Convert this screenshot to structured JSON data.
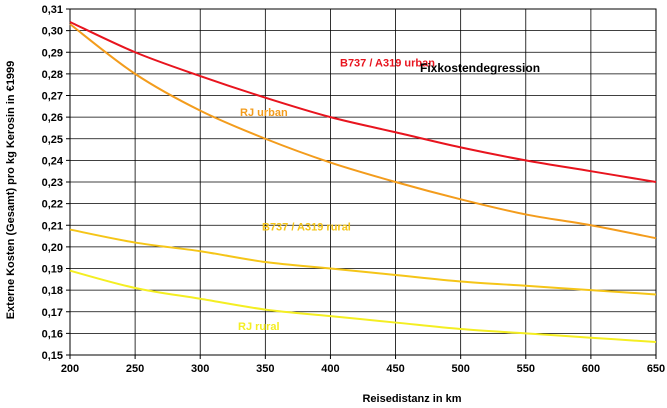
{
  "chart_data": {
    "type": "line",
    "title": "",
    "annotation": "Fixkostendegression",
    "xlabel": "Reisedistanz in km",
    "ylabel": "Externe Kosten (Gesamt) pro kg Kerosin in €1999",
    "x": [
      200,
      250,
      300,
      350,
      400,
      450,
      500,
      550,
      600,
      650
    ],
    "x_tick_labels": [
      "200",
      "250",
      "300",
      "350",
      "400",
      "450",
      "500",
      "550",
      "600",
      "650"
    ],
    "y_tick_labels": [
      "0,15",
      "0,16",
      "0,17",
      "0,18",
      "0,19",
      "0,20",
      "0,21",
      "0,22",
      "0,23",
      "0,24",
      "0,25",
      "0,26",
      "0,27",
      "0,28",
      "0,29",
      "0,30",
      "0,31"
    ],
    "xlim": [
      200,
      650
    ],
    "ylim": [
      0.15,
      0.31
    ],
    "grid": true,
    "series": [
      {
        "name": "B737 / A319 urban",
        "color": "#e8141e",
        "values": [
          0.304,
          0.29,
          0.279,
          0.269,
          0.26,
          0.253,
          0.246,
          0.24,
          0.235,
          0.23
        ]
      },
      {
        "name": "RJ urban",
        "color": "#f39c1c",
        "values": [
          0.303,
          0.28,
          0.263,
          0.25,
          0.239,
          0.23,
          0.222,
          0.215,
          0.21,
          0.204
        ]
      },
      {
        "name": "B737 / A319 rural",
        "color": "#f5c518",
        "values": [
          0.208,
          0.202,
          0.198,
          0.193,
          0.19,
          0.187,
          0.184,
          0.182,
          0.18,
          0.178
        ]
      },
      {
        "name": "RJ rural",
        "color": "#f4ee22",
        "values": [
          0.189,
          0.181,
          0.176,
          0.171,
          0.168,
          0.165,
          0.162,
          0.16,
          0.158,
          0.156
        ]
      }
    ]
  }
}
